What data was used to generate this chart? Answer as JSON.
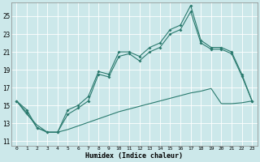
{
  "xlabel": "Humidex (Indice chaleur)",
  "background_color": "#cce8ea",
  "grid_color": "#ffffff",
  "line_color": "#2a7a6e",
  "xlim": [
    -0.5,
    23.5
  ],
  "ylim": [
    10.5,
    26.5
  ],
  "xticks": [
    0,
    1,
    2,
    3,
    4,
    5,
    6,
    7,
    8,
    9,
    10,
    11,
    12,
    13,
    14,
    15,
    16,
    17,
    18,
    19,
    20,
    21,
    22,
    23
  ],
  "yticks": [
    11,
    13,
    15,
    17,
    19,
    21,
    23,
    25
  ],
  "line1_x": [
    0,
    1,
    2,
    3,
    4,
    5,
    6,
    7,
    8,
    9,
    10,
    11,
    12,
    13,
    14,
    15,
    16,
    17,
    18,
    19,
    20,
    21,
    22,
    23
  ],
  "line1_y": [
    15.5,
    14.5,
    12.5,
    12.0,
    12.0,
    14.5,
    15.0,
    16.0,
    18.8,
    18.5,
    21.0,
    21.0,
    20.5,
    21.5,
    22.0,
    23.5,
    24.0,
    26.2,
    22.3,
    21.5,
    21.5,
    21.0,
    18.5,
    15.5
  ],
  "line2_x": [
    0,
    1,
    2,
    3,
    4,
    5,
    6,
    7,
    8,
    9,
    10,
    11,
    12,
    13,
    14,
    15,
    16,
    17,
    18,
    19,
    20,
    21,
    22,
    23
  ],
  "line2_y": [
    15.5,
    14.2,
    12.5,
    12.0,
    12.0,
    14.0,
    14.7,
    15.5,
    18.5,
    18.2,
    20.5,
    20.8,
    20.0,
    21.0,
    21.5,
    23.0,
    23.5,
    25.5,
    22.0,
    21.3,
    21.3,
    20.8,
    18.3,
    15.5
  ],
  "line3_x": [
    0,
    1,
    2,
    3,
    4,
    5,
    6,
    7,
    8,
    9,
    10,
    11,
    12,
    13,
    14,
    15,
    16,
    17,
    18,
    19,
    20,
    21,
    22,
    23
  ],
  "line3_y": [
    15.5,
    14.0,
    12.8,
    12.0,
    12.0,
    12.3,
    12.7,
    13.1,
    13.5,
    13.9,
    14.3,
    14.6,
    14.9,
    15.2,
    15.5,
    15.8,
    16.1,
    16.4,
    16.6,
    16.9,
    15.2,
    15.2,
    15.3,
    15.5
  ]
}
